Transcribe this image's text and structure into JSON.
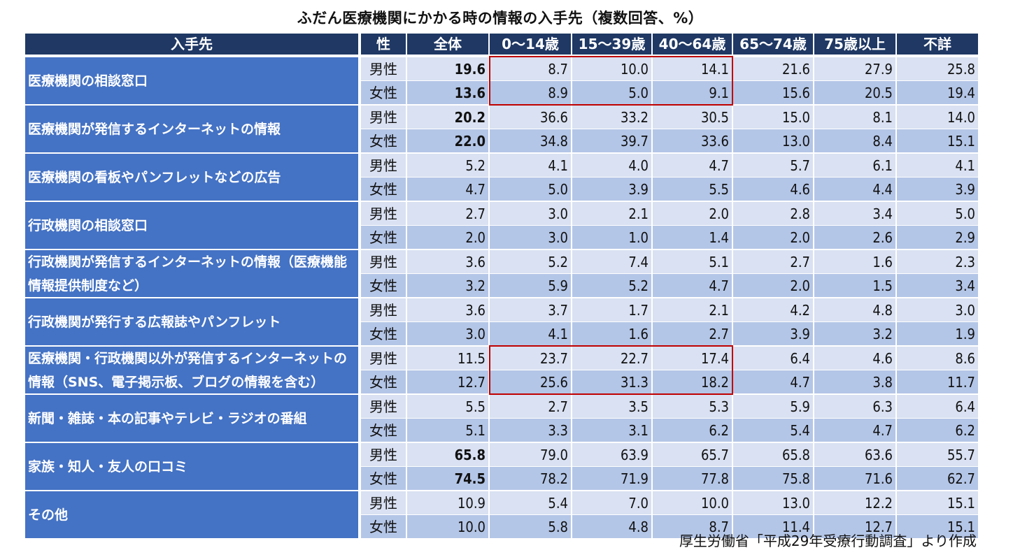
{
  "chart_data": {
    "type": "table",
    "title": "ふだん医療機関にかかる時の情報の入手先（複数回答、%）",
    "columns": [
      "入手先",
      "性",
      "全体",
      "0～14歳",
      "15～39歳",
      "40～64歳",
      "65～74歳",
      "75歳以上",
      "不詳"
    ],
    "rows": [
      {
        "source": "医療機関の相談窓口",
        "male": [
          "19.6",
          "8.7",
          "10.0",
          "14.1",
          "21.6",
          "27.9",
          "25.8"
        ],
        "female": [
          "13.6",
          "8.9",
          "5.0",
          "9.1",
          "15.6",
          "20.5",
          "19.4"
        ]
      },
      {
        "source": "医療機関が発信するインターネットの情報",
        "male": [
          "20.2",
          "36.6",
          "33.2",
          "30.5",
          "15.0",
          "8.1",
          "14.0"
        ],
        "female": [
          "22.0",
          "34.8",
          "39.7",
          "33.6",
          "13.0",
          "8.4",
          "15.1"
        ]
      },
      {
        "source": "医療機関の看板やパンフレットなどの広告",
        "male": [
          "5.2",
          "4.1",
          "4.0",
          "4.7",
          "5.7",
          "6.1",
          "4.1"
        ],
        "female": [
          "4.7",
          "5.0",
          "3.9",
          "5.5",
          "4.6",
          "4.4",
          "3.9"
        ]
      },
      {
        "source": "行政機関の相談窓口",
        "male": [
          "2.7",
          "3.0",
          "2.1",
          "2.0",
          "2.8",
          "3.4",
          "5.0"
        ],
        "female": [
          "2.0",
          "3.0",
          "1.0",
          "1.4",
          "2.0",
          "2.6",
          "2.9"
        ]
      },
      {
        "source": "行政機関が発信するインターネットの情報（医療機能情報提供制度など）",
        "male": [
          "3.6",
          "5.2",
          "7.4",
          "5.1",
          "2.7",
          "1.6",
          "2.3"
        ],
        "female": [
          "3.2",
          "5.9",
          "5.2",
          "4.7",
          "2.0",
          "1.5",
          "3.4"
        ]
      },
      {
        "source": "行政機関が発行する広報誌やパンフレット",
        "male": [
          "3.6",
          "3.7",
          "1.7",
          "2.1",
          "4.2",
          "4.8",
          "3.0"
        ],
        "female": [
          "3.0",
          "4.1",
          "1.6",
          "2.7",
          "3.9",
          "3.2",
          "1.9"
        ]
      },
      {
        "source": "医療機関・行政機関以外が発信するインターネットの情報（SNS、電子掲示板、ブログの情報を含む）",
        "male": [
          "11.5",
          "23.7",
          "22.7",
          "17.4",
          "6.4",
          "4.6",
          "8.6"
        ],
        "female": [
          "12.7",
          "25.6",
          "31.3",
          "18.2",
          "4.7",
          "3.8",
          "11.7"
        ]
      },
      {
        "source": "新聞・雑誌・本の記事やテレビ・ラジオの番組",
        "male": [
          "5.5",
          "2.7",
          "3.5",
          "5.3",
          "5.9",
          "6.3",
          "6.4"
        ],
        "female": [
          "5.1",
          "3.3",
          "3.1",
          "6.2",
          "5.4",
          "4.7",
          "6.2"
        ]
      },
      {
        "source": "家族・知人・友人の口コミ",
        "male": [
          "65.8",
          "79.0",
          "63.9",
          "65.7",
          "65.8",
          "63.6",
          "55.7"
        ],
        "female": [
          "74.5",
          "78.2",
          "71.9",
          "77.8",
          "75.8",
          "71.6",
          "62.7"
        ]
      },
      {
        "source": "その他",
        "male": [
          "10.9",
          "5.4",
          "7.0",
          "10.0",
          "13.0",
          "12.2",
          "15.1"
        ],
        "female": [
          "10.0",
          "5.8",
          "4.8",
          "8.7",
          "11.4",
          "12.7",
          "15.1"
        ]
      }
    ],
    "sex_labels": {
      "male": "男性",
      "female": "女性"
    },
    "bold_total_rows": [
      0,
      1,
      8
    ],
    "highlighted": [
      {
        "rows": [
          0
        ],
        "columns": [
          "0～14歳",
          "15～39歳",
          "40～64歳"
        ]
      },
      {
        "rows": [
          6
        ],
        "columns": [
          "0～14歳",
          "15～39歳",
          "40～64歳"
        ]
      }
    ],
    "colors": {
      "header": "#1f3864",
      "label": "#4472c4",
      "male_row": "#d9e1f2",
      "female_row": "#b4c6e7",
      "highlight": "#c00000"
    }
  },
  "source_note": "厚生労働省「平成29年受療行動調査」より作成"
}
